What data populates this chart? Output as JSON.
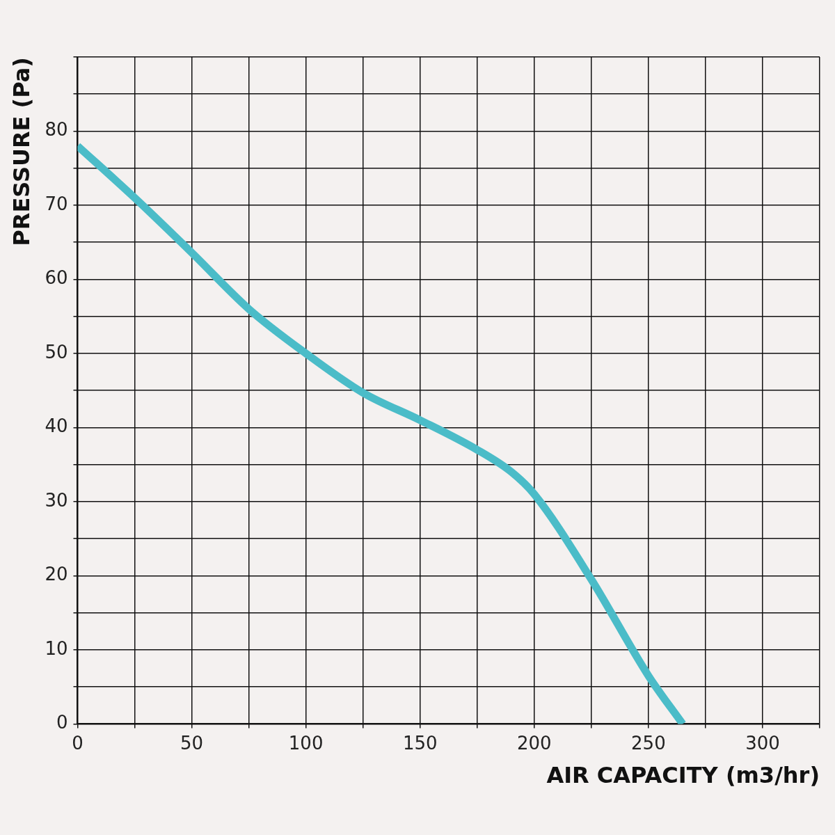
{
  "chart_data": {
    "type": "line",
    "xlabel": "AIR CAPACITY (m3/hr)",
    "ylabel": "PRESSURE (Pa)",
    "x": [
      0,
      25,
      50,
      75,
      100,
      125,
      150,
      175,
      190,
      200,
      225,
      250,
      265
    ],
    "series": [
      {
        "color": "#4bbcc8",
        "values": [
          78,
          71,
          63.6,
          56,
          50,
          44.7,
          41,
          37,
          34,
          31,
          19.5,
          6.5,
          0
        ]
      }
    ],
    "xlim": [
      0,
      325
    ],
    "xticks": [
      0,
      {
        "value": 25,
        "label": null
      },
      50,
      {
        "value": 75,
        "label": null
      },
      100,
      {
        "value": 125,
        "label": null
      },
      150,
      {
        "value": 175,
        "label": null
      },
      200,
      {
        "value": 225,
        "label": null
      },
      250,
      {
        "value": 275,
        "label": null
      },
      300,
      {
        "value": 325,
        "label": null
      }
    ],
    "ylim": [
      0,
      90
    ],
    "yticks": [
      0,
      {
        "value": 5,
        "label": null
      },
      10,
      {
        "value": 15,
        "label": null
      },
      20,
      {
        "value": 25,
        "label": null
      },
      30,
      {
        "value": 35,
        "label": null
      },
      40,
      {
        "value": 45,
        "label": null
      },
      50,
      {
        "value": 55,
        "label": null
      },
      60,
      {
        "value": 65,
        "label": null
      },
      70,
      {
        "value": 75,
        "label": null
      },
      80,
      {
        "value": 85,
        "label": null
      },
      {
        "value": 90,
        "label": null
      }
    ],
    "grid": true,
    "legend": false,
    "marker": "none",
    "line_style": "solid"
  }
}
